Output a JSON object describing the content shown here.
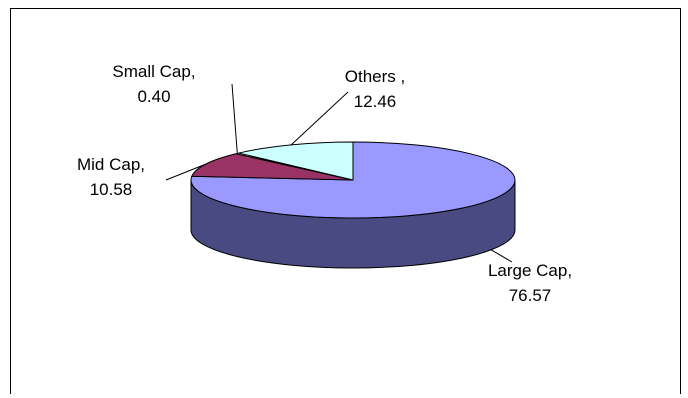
{
  "chart_data": {
    "type": "pie",
    "title": "",
    "slices": [
      {
        "label": "Large Cap,",
        "value": "76.57",
        "num": 76.57,
        "color": "#9999ff",
        "side": "#4a4a82"
      },
      {
        "label": "Mid Cap,",
        "value": "10.58",
        "num": 10.58,
        "color": "#993366",
        "side": "#4d1a33"
      },
      {
        "label": "Small Cap,",
        "value": "0.40",
        "num": 0.4,
        "color": "#ffffcc",
        "side": "#80806a"
      },
      {
        "label": "Others ,",
        "value": "12.46",
        "num": 12.46,
        "color": "#ccffff",
        "side": "#6a8080"
      }
    ],
    "legend": "none",
    "style": "3d-pie"
  }
}
